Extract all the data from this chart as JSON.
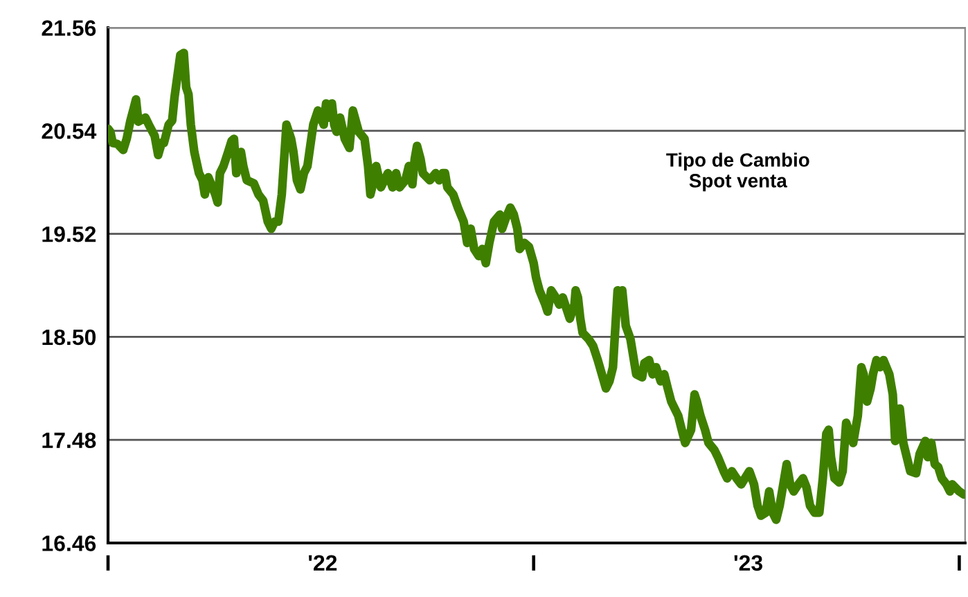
{
  "chart_data": {
    "type": "line",
    "annotations": [
      "Tipo de Cambio\nSpot venta"
    ],
    "x": [
      "2021-07-01",
      "2021-07-03",
      "2021-07-05",
      "2021-07-09",
      "2021-07-14",
      "2021-07-17",
      "2021-07-20",
      "2021-07-23",
      "2021-07-25",
      "2021-07-27",
      "2021-08-02",
      "2021-08-05",
      "2021-08-10",
      "2021-08-13",
      "2021-08-16",
      "2021-08-18",
      "2021-08-22",
      "2021-08-25",
      "2021-08-27",
      "2021-09-01",
      "2021-09-04",
      "2021-09-06",
      "2021-09-08",
      "2021-09-10",
      "2021-09-13",
      "2021-09-17",
      "2021-09-20",
      "2021-09-22",
      "2021-09-25",
      "2021-10-01",
      "2021-10-03",
      "2021-10-05",
      "2021-10-08",
      "2021-10-12",
      "2021-10-15",
      "2021-10-17",
      "2021-10-19",
      "2021-10-23",
      "2021-10-25",
      "2021-10-28",
      "2021-11-03",
      "2021-11-07",
      "2021-11-11",
      "2021-11-15",
      "2021-11-18",
      "2021-11-21",
      "2021-11-24",
      "2021-11-27",
      "2021-12-01",
      "2021-12-05",
      "2021-12-07",
      "2021-12-10",
      "2021-12-13",
      "2021-12-16",
      "2021-12-19",
      "2021-12-24",
      "2021-12-28",
      "2022-01-02",
      "2022-01-04",
      "2022-01-06",
      "2022-01-09",
      "2022-01-11",
      "2022-01-13",
      "2022-01-16",
      "2022-01-20",
      "2022-01-24",
      "2022-01-27",
      "2022-02-01",
      "2022-02-06",
      "2022-02-09",
      "2022-02-11",
      "2022-02-14",
      "2022-02-16",
      "2022-02-20",
      "2022-02-23",
      "2022-02-26",
      "2022-03-02",
      "2022-03-05",
      "2022-03-08",
      "2022-03-13",
      "2022-03-16",
      "2022-03-19",
      "2022-03-21",
      "2022-03-23",
      "2022-03-26",
      "2022-03-28",
      "2022-04-03",
      "2022-04-08",
      "2022-04-11",
      "2022-04-14",
      "2022-04-16",
      "2022-04-18",
      "2022-04-23",
      "2022-04-27",
      "2022-05-02",
      "2022-05-05",
      "2022-05-08",
      "2022-05-11",
      "2022-05-15",
      "2022-05-18",
      "2022-05-21",
      "2022-05-24",
      "2022-05-28",
      "2022-06-02",
      "2022-06-04",
      "2022-06-07",
      "2022-06-11",
      "2022-06-14",
      "2022-06-17",
      "2022-06-19",
      "2022-06-23",
      "2022-06-27",
      "2022-07-01",
      "2022-07-03",
      "2022-07-06",
      "2022-07-11",
      "2022-07-13",
      "2022-07-16",
      "2022-07-20",
      "2022-07-23",
      "2022-07-26",
      "2022-08-01",
      "2022-08-05",
      "2022-08-06",
      "2022-08-08",
      "2022-08-10",
      "2022-08-12",
      "2022-08-17",
      "2022-08-21",
      "2022-08-25",
      "2022-09-01",
      "2022-09-04",
      "2022-09-07",
      "2022-09-11",
      "2022-09-13",
      "2022-09-15",
      "2022-09-18",
      "2022-09-22",
      "2022-09-25",
      "2022-09-27",
      "2022-10-02",
      "2022-10-04",
      "2022-10-08",
      "2022-10-11",
      "2022-10-14",
      "2022-10-18",
      "2022-10-21",
      "2022-10-24",
      "2022-10-27",
      "2022-11-02",
      "2022-11-05",
      "2022-11-08",
      "2022-11-13",
      "2022-11-16",
      "2022-11-18",
      "2022-11-21",
      "2022-11-25",
      "2022-11-28",
      "2022-12-03",
      "2022-12-06",
      "2022-12-11",
      "2022-12-14",
      "2022-12-18",
      "2022-12-22",
      "2022-12-26",
      "2023-01-02",
      "2023-01-06",
      "2023-01-09",
      "2023-01-12",
      "2023-01-16",
      "2023-01-19",
      "2023-01-22",
      "2023-01-25",
      "2023-01-28",
      "2023-02-03",
      "2023-02-06",
      "2023-02-09",
      "2023-02-13",
      "2023-02-17",
      "2023-02-20",
      "2023-02-23",
      "2023-02-27",
      "2023-03-03",
      "2023-03-06",
      "2023-03-09",
      "2023-03-11",
      "2023-03-13",
      "2023-03-16",
      "2023-03-20",
      "2023-03-23",
      "2023-03-26",
      "2023-04-01",
      "2023-04-05",
      "2023-04-08",
      "2023-04-10",
      "2023-04-13",
      "2023-04-16",
      "2023-04-18",
      "2023-04-21",
      "2023-04-24",
      "2023-04-27",
      "2023-05-02",
      "2023-05-05",
      "2023-05-07",
      "2023-05-11",
      "2023-05-14",
      "2023-05-17",
      "2023-05-20",
      "2023-05-25",
      "2023-05-28",
      "2023-06-02",
      "2023-06-04",
      "2023-06-07",
      "2023-06-10",
      "2023-06-13",
      "2023-06-16",
      "2023-06-20",
      "2023-06-23",
      "2023-06-25",
      "2023-07-01",
      "2023-07-05"
    ],
    "series": [
      {
        "color": "#3f7f00",
        "values": [
          20.56,
          20.53,
          20.42,
          20.41,
          20.35,
          20.46,
          20.63,
          20.76,
          20.85,
          20.63,
          20.67,
          20.6,
          20.49,
          20.3,
          20.42,
          20.42,
          20.6,
          20.64,
          20.87,
          21.29,
          21.31,
          20.97,
          20.9,
          20.6,
          20.33,
          20.12,
          20.05,
          19.91,
          20.08,
          19.91,
          19.83,
          20.12,
          20.19,
          20.33,
          20.44,
          20.46,
          20.12,
          20.33,
          20.19,
          20.05,
          20.02,
          19.91,
          19.85,
          19.64,
          19.57,
          19.64,
          19.64,
          19.91,
          20.6,
          20.46,
          20.33,
          20.05,
          19.96,
          20.12,
          20.19,
          20.6,
          20.74,
          20.6,
          20.81,
          20.67,
          20.81,
          20.6,
          20.53,
          20.67,
          20.46,
          20.37,
          20.74,
          20.53,
          20.46,
          20.19,
          19.91,
          20.05,
          20.19,
          19.98,
          20.05,
          20.12,
          19.98,
          20.12,
          19.98,
          20.05,
          20.19,
          20.01,
          20.26,
          20.39,
          20.26,
          20.12,
          20.05,
          20.12,
          20.05,
          20.12,
          20.12,
          19.98,
          19.91,
          19.78,
          19.64,
          19.43,
          19.57,
          19.37,
          19.3,
          19.37,
          19.23,
          19.43,
          19.64,
          19.71,
          19.57,
          19.67,
          19.78,
          19.71,
          19.57,
          19.37,
          19.43,
          19.39,
          19.23,
          19.09,
          18.96,
          18.82,
          18.75,
          18.96,
          18.89,
          18.82,
          18.89,
          18.68,
          18.82,
          18.96,
          18.89,
          18.68,
          18.54,
          18.48,
          18.41,
          18.27,
          17.99,
          18.06,
          18.2,
          18.96,
          18.89,
          18.96,
          18.61,
          18.48,
          18.27,
          18.13,
          18.1,
          18.24,
          18.27,
          18.13,
          18.2,
          18.06,
          18.13,
          17.99,
          17.86,
          17.72,
          17.58,
          17.45,
          17.58,
          17.93,
          17.86,
          17.72,
          17.58,
          17.45,
          17.38,
          17.31,
          17.17,
          17.1,
          17.17,
          17.1,
          17.04,
          17.17,
          17.04,
          16.83,
          16.73,
          16.76,
          16.97,
          16.76,
          16.69,
          16.83,
          17.24,
          17.04,
          16.97,
          17.04,
          17.1,
          17.01,
          16.83,
          16.76,
          16.76,
          17.1,
          17.54,
          17.58,
          17.31,
          17.1,
          17.06,
          17.17,
          17.65,
          17.45,
          17.72,
          18.2,
          18.13,
          17.86,
          17.99,
          18.13,
          18.27,
          18.2,
          18.27,
          18.13,
          17.93,
          17.47,
          17.79,
          17.45,
          17.31,
          17.17,
          17.15,
          17.34,
          17.47,
          17.31,
          17.45,
          17.24,
          17.21,
          17.1,
          17.04,
          16.97,
          17.04,
          16.97,
          16.94
        ]
      }
    ],
    "xlim": [
      "2021-07-01",
      "2023-07-06"
    ],
    "xticks": [
      {
        "value": "2021-07-01",
        "label": "I"
      },
      {
        "value": "2022-01-01",
        "label": "'22"
      },
      {
        "value": "2022-07-01",
        "label": "I"
      },
      {
        "value": "2023-01-01",
        "label": "'23"
      },
      {
        "value": "2023-07-01",
        "label": "I"
      }
    ],
    "ylim": [
      16.46,
      21.56
    ],
    "yticks": [
      16.46,
      17.48,
      {
        "value": 18.5,
        "label": "18.50"
      },
      19.52,
      20.54,
      21.56
    ],
    "grid": "y",
    "legend": false,
    "line_style": "solid"
  }
}
